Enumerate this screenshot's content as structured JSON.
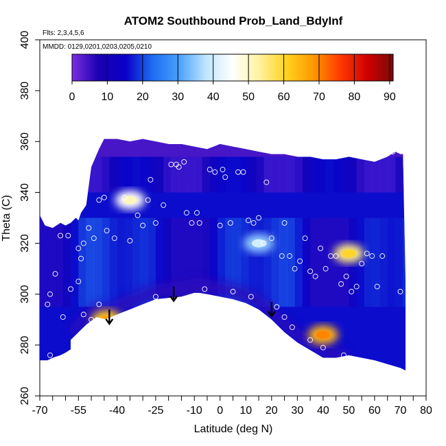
{
  "chart_data": {
    "type": "heatmap",
    "title": "ATOM2 Southbound Prob_Land_BdyInf",
    "subtitle_flights": "Flts: 2,3,4,5,6",
    "subtitle_dates": "MMDD: 0129,0201,0203,0205,0210",
    "xlabel": "Latitude (deg N)",
    "ylabel": "Theta (C)",
    "xlim": [
      -70,
      80
    ],
    "ylim": [
      260,
      400
    ],
    "x_ticks_labeled": [
      "-70",
      "-55",
      "-40",
      "-25",
      "-10",
      "0",
      "10",
      "20",
      "30",
      "40",
      "50",
      "60",
      "70",
      "80"
    ],
    "x_tick_values": [
      -70,
      -55,
      -40,
      -25,
      -10,
      0,
      10,
      20,
      30,
      40,
      50,
      60,
      70,
      80
    ],
    "x_minor_ticks": [
      -65,
      -60,
      -50,
      -45,
      -35,
      -30,
      -20,
      -15,
      -5,
      5,
      15,
      25,
      35,
      45,
      55,
      65,
      75
    ],
    "y_ticks": [
      "260",
      "280",
      "300",
      "320",
      "340",
      "360",
      "380",
      "400"
    ],
    "y_tick_values": [
      260,
      280,
      300,
      320,
      340,
      360,
      380,
      400
    ],
    "colorbar": {
      "ticks": [
        "0",
        "10",
        "20",
        "30",
        "40",
        "50",
        "60",
        "70",
        "80",
        "90"
      ],
      "tick_values": [
        0,
        10,
        20,
        30,
        40,
        50,
        60,
        70,
        80,
        90
      ],
      "range": [
        0,
        91
      ],
      "colors": [
        "#7a2ee0",
        "#1a00b0",
        "#0a00c8",
        "#1e6cf0",
        "#4aa0ff",
        "#bfe6ff",
        "#ffffff",
        "#fff2a0",
        "#ffd21e",
        "#ff9a00",
        "#ff3c00",
        "#d20000",
        "#7a0a0a"
      ]
    },
    "land_boundary": {
      "lat": [
        -58,
        -55,
        -52,
        -48,
        -44,
        -40,
        -35,
        -30,
        -25,
        -20,
        -15,
        -10,
        -8,
        -5,
        0,
        5,
        10,
        15,
        20,
        25,
        30,
        35,
        40,
        45,
        50
      ],
      "theta": [
        282,
        285,
        288,
        291,
        290,
        292,
        294,
        296,
        298,
        298.5,
        299,
        300.5,
        300.5,
        300,
        299,
        298,
        296.5,
        294,
        290,
        285,
        281,
        278,
        275,
        273,
        272
      ]
    },
    "data_region": {
      "lat": [
        -70,
        -69,
        -68,
        -65,
        -62,
        -60,
        -58,
        -56,
        -55,
        -54,
        -52,
        -50,
        -47,
        -45,
        -40,
        -35,
        -30,
        -25,
        -20,
        -15,
        -10,
        -5,
        0,
        5,
        10,
        15,
        20,
        25,
        30,
        35,
        40,
        45,
        50,
        55,
        60,
        65,
        68,
        70,
        71,
        72,
        72,
        70,
        60,
        50,
        45,
        40,
        35,
        30,
        20,
        10,
        0,
        -10,
        -15,
        -20,
        -25,
        -30,
        -35,
        -40,
        -45,
        -50,
        -55,
        -56,
        -57,
        -60,
        -62,
        -65,
        -67,
        -69,
        -70
      ],
      "theta": [
        331,
        329,
        327,
        326,
        328,
        327,
        328,
        330,
        329,
        332,
        335,
        350,
        357,
        361,
        361,
        360,
        361,
        360,
        359,
        359,
        358,
        357,
        359,
        358,
        357,
        356,
        355,
        355,
        354,
        354,
        353,
        353,
        354,
        353,
        352,
        354,
        356,
        355,
        355,
        305,
        270,
        271,
        274,
        276,
        275,
        275,
        276,
        279,
        289,
        296,
        299,
        300.5,
        299,
        298.5,
        298,
        296,
        294,
        292,
        290,
        288,
        284,
        281,
        279,
        277,
        276,
        275,
        274,
        274,
        274
      ]
    },
    "hotspots": [
      {
        "lat": -44,
        "theta": 290,
        "value": 62
      },
      {
        "lat": 40,
        "theta": 284,
        "value": 65
      },
      {
        "lat": 50,
        "theta": 316,
        "value": 55
      },
      {
        "lat": -35,
        "theta": 337,
        "value": 46
      },
      {
        "lat": 15,
        "theta": 320,
        "value": 35
      }
    ],
    "arrows": [
      {
        "lat": -43,
        "theta": 294
      },
      {
        "lat": -18,
        "theta": 303
      },
      {
        "lat": 20,
        "theta": 297
      }
    ],
    "observations": [
      {
        "lat": -66,
        "theta": 330
      },
      {
        "lat": -64,
        "theta": 336
      },
      {
        "lat": -63,
        "theta": 334
      },
      {
        "lat": -62,
        "theta": 323
      },
      {
        "lat": -59,
        "theta": 323
      },
      {
        "lat": -58,
        "theta": 346
      },
      {
        "lat": -57,
        "theta": 353
      },
      {
        "lat": -55,
        "theta": 318
      },
      {
        "lat": -54,
        "theta": 314
      },
      {
        "lat": -53,
        "theta": 320
      },
      {
        "lat": -52,
        "theta": 351
      },
      {
        "lat": -51,
        "theta": 326
      },
      {
        "lat": -49,
        "theta": 322
      },
      {
        "lat": -47,
        "theta": 337
      },
      {
        "lat": -45,
        "theta": 338
      },
      {
        "lat": -44,
        "theta": 325
      },
      {
        "lat": -41,
        "theta": 322
      },
      {
        "lat": -37,
        "theta": 338
      },
      {
        "lat": -35,
        "theta": 321
      },
      {
        "lat": -32,
        "theta": 331
      },
      {
        "lat": -30,
        "theta": 327
      },
      {
        "lat": -28,
        "theta": 337
      },
      {
        "lat": -27,
        "theta": 345
      },
      {
        "lat": -25,
        "theta": 328
      },
      {
        "lat": -22,
        "theta": 335
      },
      {
        "lat": -19,
        "theta": 351
      },
      {
        "lat": -17,
        "theta": 351
      },
      {
        "lat": -16,
        "theta": 350
      },
      {
        "lat": -14,
        "theta": 352
      },
      {
        "lat": -13,
        "theta": 332
      },
      {
        "lat": -11,
        "theta": 328
      },
      {
        "lat": -9,
        "theta": 332
      },
      {
        "lat": -8,
        "theta": 328
      },
      {
        "lat": -6,
        "theta": 302
      },
      {
        "lat": -4,
        "theta": 349
      },
      {
        "lat": -2,
        "theta": 348
      },
      {
        "lat": 0,
        "theta": 327
      },
      {
        "lat": 1,
        "theta": 349
      },
      {
        "lat": 2,
        "theta": 346
      },
      {
        "lat": 4,
        "theta": 328
      },
      {
        "lat": 5,
        "theta": 301
      },
      {
        "lat": 7,
        "theta": 348
      },
      {
        "lat": 9,
        "theta": 348
      },
      {
        "lat": 11,
        "theta": 329
      },
      {
        "lat": 12,
        "theta": 299
      },
      {
        "lat": 13,
        "theta": 328
      },
      {
        "lat": 15,
        "theta": 330
      },
      {
        "lat": 17,
        "theta": 320
      },
      {
        "lat": 18,
        "theta": 344
      },
      {
        "lat": 20,
        "theta": 322
      },
      {
        "lat": 22,
        "theta": 295
      },
      {
        "lat": 24,
        "theta": 315
      },
      {
        "lat": 25,
        "theta": 328
      },
      {
        "lat": 27,
        "theta": 315
      },
      {
        "lat": 29,
        "theta": 310
      },
      {
        "lat": 31,
        "theta": 313
      },
      {
        "lat": 33,
        "theta": 322
      },
      {
        "lat": 35,
        "theta": 309
      },
      {
        "lat": 37,
        "theta": 307
      },
      {
        "lat": 39,
        "theta": 318
      },
      {
        "lat": 41,
        "theta": 310
      },
      {
        "lat": 43,
        "theta": 315
      },
      {
        "lat": 45,
        "theta": 315
      },
      {
        "lat": 47,
        "theta": 304
      },
      {
        "lat": 49,
        "theta": 307
      },
      {
        "lat": 51,
        "theta": 301
      },
      {
        "lat": 53,
        "theta": 303
      },
      {
        "lat": 55,
        "theta": 312
      },
      {
        "lat": 57,
        "theta": 316
      },
      {
        "lat": 59,
        "theta": 315
      },
      {
        "lat": 61,
        "theta": 303
      },
      {
        "lat": 63,
        "theta": 315
      },
      {
        "lat": 65,
        "theta": 356
      },
      {
        "lat": 67,
        "theta": 356
      },
      {
        "lat": 70,
        "theta": 301
      },
      {
        "lat": -67,
        "theta": 296
      },
      {
        "lat": -66,
        "theta": 300
      },
      {
        "lat": -64,
        "theta": 308
      },
      {
        "lat": -61,
        "theta": 291
      },
      {
        "lat": -58,
        "theta": 302
      },
      {
        "lat": -55,
        "theta": 305
      },
      {
        "lat": -53,
        "theta": 292
      },
      {
        "lat": -50,
        "theta": 290
      },
      {
        "lat": -47,
        "theta": 296
      },
      {
        "lat": -25,
        "theta": 299
      },
      {
        "lat": -66,
        "theta": 276
      },
      {
        "lat": 25,
        "theta": 291
      },
      {
        "lat": 28,
        "theta": 287
      },
      {
        "lat": 35,
        "theta": 282
      },
      {
        "lat": 40,
        "theta": 279
      },
      {
        "lat": 48,
        "theta": 276
      },
      {
        "lat": 52,
        "theta": 273
      }
    ]
  }
}
